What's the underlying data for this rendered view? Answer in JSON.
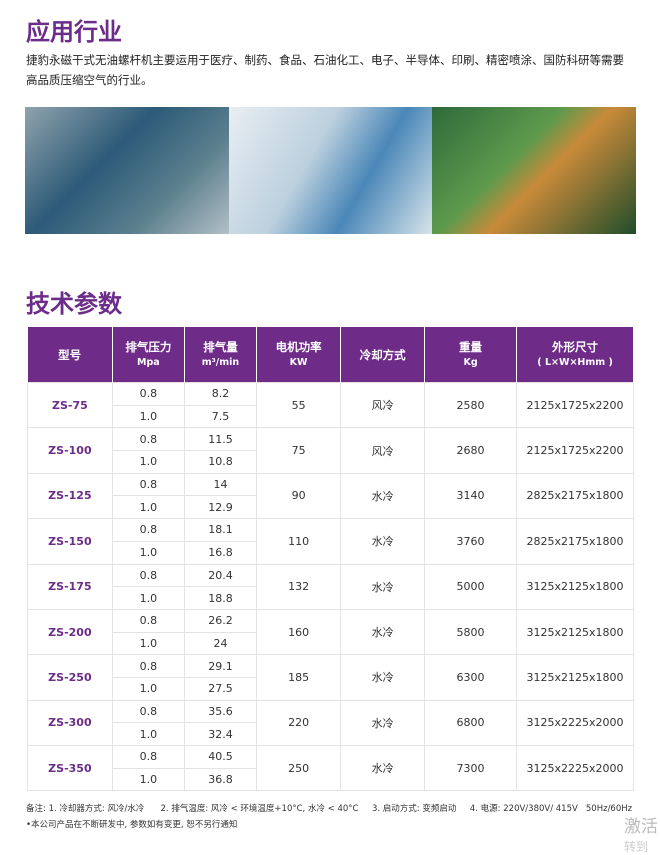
{
  "section1": {
    "title": "应用行业",
    "text": "捷豹永磁干式无油螺杆机主要运用于医疗、制药、食品、石油化工、电子、半导体、印刷、精密喷涂、国防科研等需要高品质压缩空气的行业。"
  },
  "section2": {
    "title": "技术参数"
  },
  "table": {
    "headers": [
      {
        "t": "型号",
        "u": ""
      },
      {
        "t": "排气压力",
        "u": "Mpa"
      },
      {
        "t": "排气量",
        "u": "m³/min"
      },
      {
        "t": "电机功率",
        "u": "KW"
      },
      {
        "t": "冷却方式",
        "u": ""
      },
      {
        "t": "重量",
        "u": "Kg"
      },
      {
        "t": "外形尺寸",
        "u": "( L×W×Hmm )"
      }
    ],
    "rows": [
      {
        "model": "ZS-75",
        "p": [
          "0.8",
          "1.0"
        ],
        "q": [
          "8.2",
          "7.5"
        ],
        "kw": "55",
        "cool": "风冷",
        "kg": "2580",
        "dim": "2125x1725x2200"
      },
      {
        "model": "ZS-100",
        "p": [
          "0.8",
          "1.0"
        ],
        "q": [
          "11.5",
          "10.8"
        ],
        "kw": "75",
        "cool": "风冷",
        "kg": "2680",
        "dim": "2125x1725x2200"
      },
      {
        "model": "ZS-125",
        "p": [
          "0.8",
          "1.0"
        ],
        "q": [
          "14",
          "12.9"
        ],
        "kw": "90",
        "cool": "水冷",
        "kg": "3140",
        "dim": "2825x2175x1800"
      },
      {
        "model": "ZS-150",
        "p": [
          "0.8",
          "1.0"
        ],
        "q": [
          "18.1",
          "16.8"
        ],
        "kw": "110",
        "cool": "水冷",
        "kg": "3760",
        "dim": "2825x2175x1800"
      },
      {
        "model": "ZS-175",
        "p": [
          "0.8",
          "1.0"
        ],
        "q": [
          "20.4",
          "18.8"
        ],
        "kw": "132",
        "cool": "水冷",
        "kg": "5000",
        "dim": "3125x2125x1800"
      },
      {
        "model": "ZS-200",
        "p": [
          "0.8",
          "1.0"
        ],
        "q": [
          "26.2",
          "24"
        ],
        "kw": "160",
        "cool": "水冷",
        "kg": "5800",
        "dim": "3125x2125x1800"
      },
      {
        "model": "ZS-250",
        "p": [
          "0.8",
          "1.0"
        ],
        "q": [
          "29.1",
          "27.5"
        ],
        "kw": "185",
        "cool": "水冷",
        "kg": "6300",
        "dim": "3125x2125x1800"
      },
      {
        "model": "ZS-300",
        "p": [
          "0.8",
          "1.0"
        ],
        "q": [
          "35.6",
          "32.4"
        ],
        "kw": "220",
        "cool": "水冷",
        "kg": "6800",
        "dim": "3125x2225x2000"
      },
      {
        "model": "ZS-350",
        "p": [
          "0.8",
          "1.0"
        ],
        "q": [
          "40.5",
          "36.8"
        ],
        "kw": "250",
        "cool": "水冷",
        "kg": "7300",
        "dim": "3125x2225x2000"
      }
    ]
  },
  "notes": {
    "line1": "备注: 1. 冷却器方式: 风冷/水冷      2. 排气温度: 风冷 < 环境温度+10°C, 水冷 < 40°C     3. 启动方式: 变频启动     4. 电源: 220V/380V/ 415V   50Hz/60Hz",
    "line2": "•本公司产品在不断研发中, 参数如有变更, 恕不另行通知"
  },
  "watermark": {
    "line1": "激活",
    "line2": "转到"
  }
}
